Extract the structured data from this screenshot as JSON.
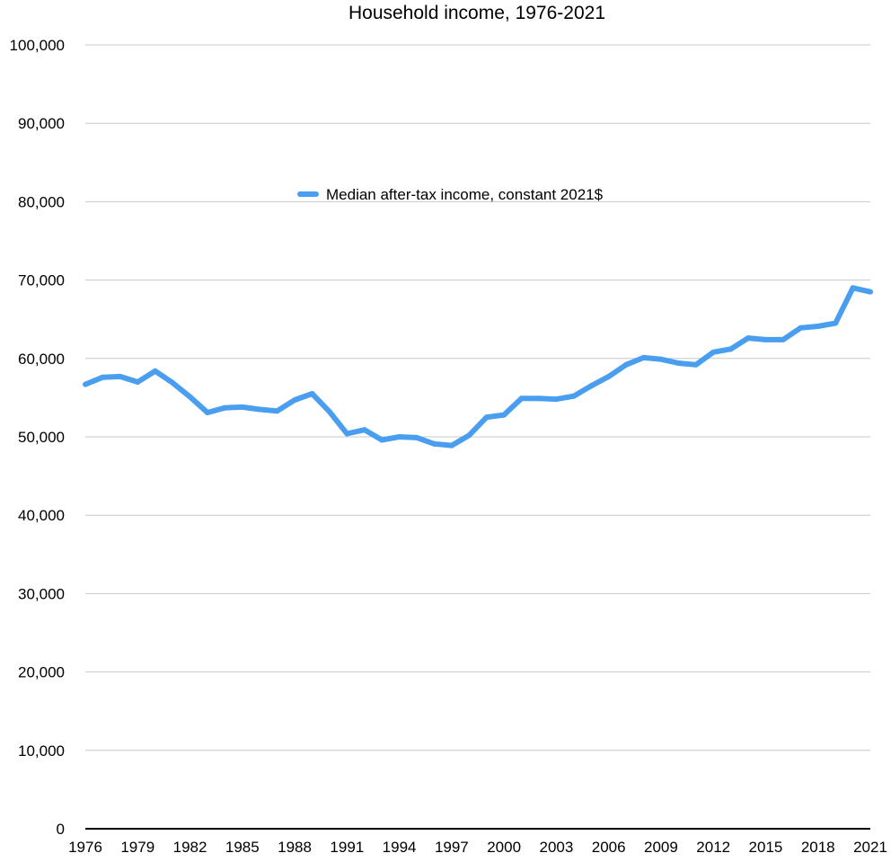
{
  "chart_data": {
    "type": "line",
    "title": "Household income, 1976-2021",
    "xlabel": "",
    "ylabel": "",
    "xlim": [
      1976,
      2021
    ],
    "ylim": [
      0,
      100000
    ],
    "grid": true,
    "legend_position": "top-center",
    "y_ticks": [
      "0",
      "10,000",
      "20,000",
      "30,000",
      "40,000",
      "50,000",
      "60,000",
      "70,000",
      "80,000",
      "90,000",
      "100,000"
    ],
    "x_ticks": [
      "1976",
      "1979",
      "1982",
      "1985",
      "1988",
      "1991",
      "1994",
      "1997",
      "2000",
      "2003",
      "2006",
      "2009",
      "2012",
      "2015",
      "2018",
      "2021"
    ],
    "series": [
      {
        "name": "Median after-tax income, constant 2021$",
        "color": "#4a9ef0",
        "x": [
          1976,
          1977,
          1978,
          1979,
          1980,
          1981,
          1982,
          1983,
          1984,
          1985,
          1986,
          1987,
          1988,
          1989,
          1990,
          1991,
          1992,
          1993,
          1994,
          1995,
          1996,
          1997,
          1998,
          1999,
          2000,
          2001,
          2002,
          2003,
          2004,
          2005,
          2006,
          2007,
          2008,
          2009,
          2010,
          2011,
          2012,
          2013,
          2014,
          2015,
          2016,
          2017,
          2018,
          2019,
          2020,
          2021
        ],
        "values": [
          56700,
          57600,
          57700,
          57000,
          58400,
          56900,
          55100,
          53100,
          53700,
          53800,
          53500,
          53300,
          54700,
          55500,
          53200,
          50400,
          50900,
          49600,
          50000,
          49900,
          49100,
          48900,
          50200,
          52500,
          52800,
          54900,
          54900,
          54800,
          55200,
          56500,
          57700,
          59200,
          60100,
          59900,
          59400,
          59200,
          60800,
          61200,
          62600,
          62400,
          62400,
          63900,
          64100,
          64500,
          69000,
          68500
        ]
      }
    ]
  }
}
